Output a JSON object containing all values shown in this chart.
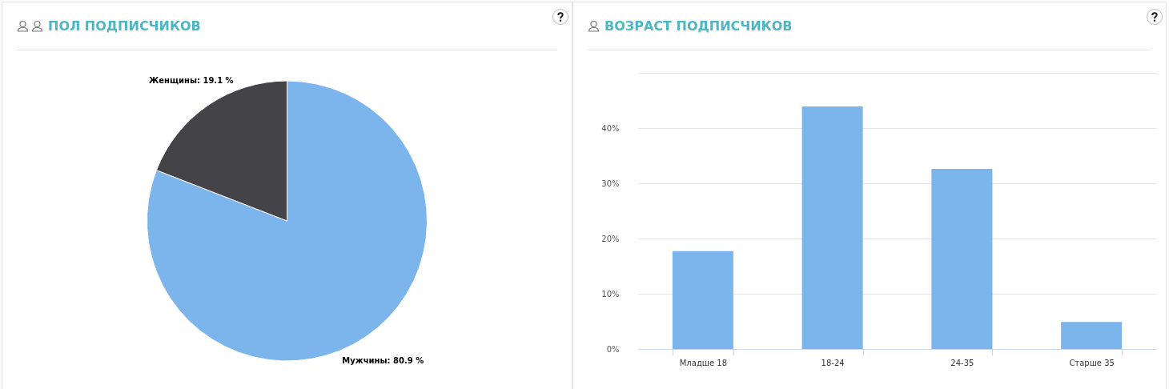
{
  "chart_data": [
    {
      "type": "pie",
      "title": "ПОЛ ПОДПИСЧИКОВ",
      "categories": [
        "Мужчины",
        "Женщины"
      ],
      "values": [
        80.9,
        19.1
      ],
      "colors": [
        "#7cb5ec",
        "#434348"
      ],
      "value_labels": [
        "80.9 %",
        "19.1 %"
      ]
    },
    {
      "type": "bar",
      "title": "ВОЗРАСТ ПОДПИСЧИКОВ",
      "categories": [
        "Младше 18",
        "18-24",
        "24-35",
        "Старше 35"
      ],
      "values": [
        17.7,
        43.9,
        32.6,
        4.9
      ],
      "color": "#7cb5ec",
      "ylim": [
        0,
        50
      ],
      "yticks": [
        {
          "value": 0,
          "label": "0%"
        },
        {
          "value": 10,
          "label": "10%"
        },
        {
          "value": 20,
          "label": "20%"
        },
        {
          "value": 30,
          "label": "30%"
        },
        {
          "value": 40,
          "label": "40%"
        },
        {
          "value": 50,
          "label": null
        }
      ],
      "grid": "y"
    }
  ]
}
